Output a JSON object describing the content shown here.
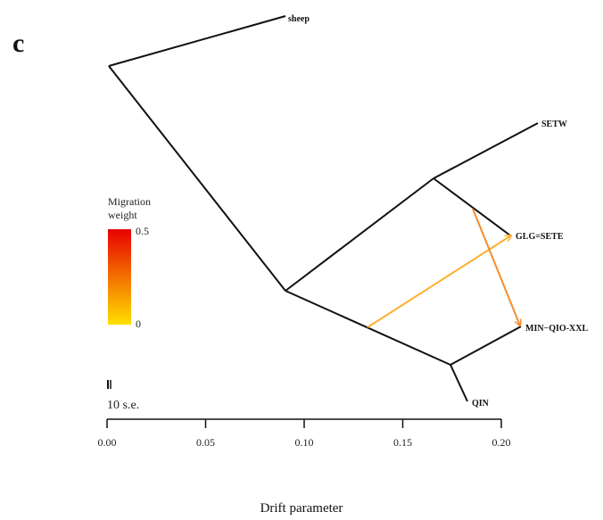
{
  "panel_label": "c",
  "tree": {
    "leaves": {
      "sheep": "sheep",
      "setw": "SETW",
      "glg_sete": "GLG=SETE",
      "min_qio_xxl": "MIN−QIO-XXL",
      "qin": "QIN"
    }
  },
  "migration_edges": [
    {
      "from": "QIN/MIN−QIO-XXL branch",
      "to": "GLG=SETE",
      "color": "#FFB030"
    },
    {
      "from": "GLG=SETE branch",
      "to": "MIN−QIO-XXL",
      "color": "#F58C2C"
    }
  ],
  "legend": {
    "title_line1": "Migration",
    "title_line2": "weight",
    "max": "0.5",
    "min": "0",
    "color_high": "#E80000",
    "color_low": "#FFE000"
  },
  "scale_bar": {
    "label": "10 s.e."
  },
  "axis": {
    "label": "Drift parameter",
    "ticks": [
      "0.00",
      "0.05",
      "0.10",
      "0.15",
      "0.20"
    ]
  }
}
